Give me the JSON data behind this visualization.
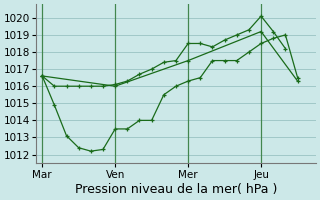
{
  "background_color": "#cce8e8",
  "grid_color": "#a0c8c8",
  "line_color": "#1a6b1a",
  "ylabel_text": "Pression niveau de la mer( hPa )",
  "ylim": [
    1011.5,
    1020.8
  ],
  "yticks": [
    1012,
    1013,
    1014,
    1015,
    1016,
    1017,
    1018,
    1019,
    1020
  ],
  "xtick_labels": [
    "Mar",
    "Ven",
    "Mer",
    "Jeu"
  ],
  "xtick_positions": [
    0,
    24,
    48,
    72
  ],
  "xlim": [
    -2,
    90
  ],
  "vline_positions": [
    0,
    24,
    48,
    72
  ],
  "line1_x": [
    0,
    4,
    8,
    12,
    16,
    20,
    24,
    28,
    32,
    36,
    40,
    44,
    48,
    52,
    56,
    60,
    64,
    68,
    72,
    76,
    80
  ],
  "line1_y": [
    1016.6,
    1016.0,
    1016.0,
    1016.0,
    1016.0,
    1016.0,
    1016.1,
    1016.3,
    1016.7,
    1017.0,
    1017.4,
    1017.5,
    1018.5,
    1018.5,
    1018.3,
    1018.7,
    1019.0,
    1019.3,
    1020.1,
    1019.2,
    1018.2
  ],
  "line2_x": [
    0,
    4,
    8,
    12,
    16,
    20,
    24,
    28,
    32,
    36,
    40,
    44,
    48,
    52,
    56,
    60,
    64,
    68,
    72,
    76,
    80,
    84
  ],
  "line2_y": [
    1016.6,
    1014.9,
    1013.1,
    1012.4,
    1012.2,
    1012.3,
    1013.5,
    1013.5,
    1014.0,
    1014.0,
    1015.5,
    1016.0,
    1016.3,
    1016.5,
    1017.5,
    1017.5,
    1017.5,
    1018.0,
    1018.5,
    1018.8,
    1019.0,
    1016.5
  ],
  "line3_x": [
    0,
    24,
    48,
    72,
    84
  ],
  "line3_y": [
    1016.6,
    1016.0,
    1017.5,
    1019.2,
    1016.3
  ],
  "font_size_label": 9,
  "font_size_tick": 7.5
}
